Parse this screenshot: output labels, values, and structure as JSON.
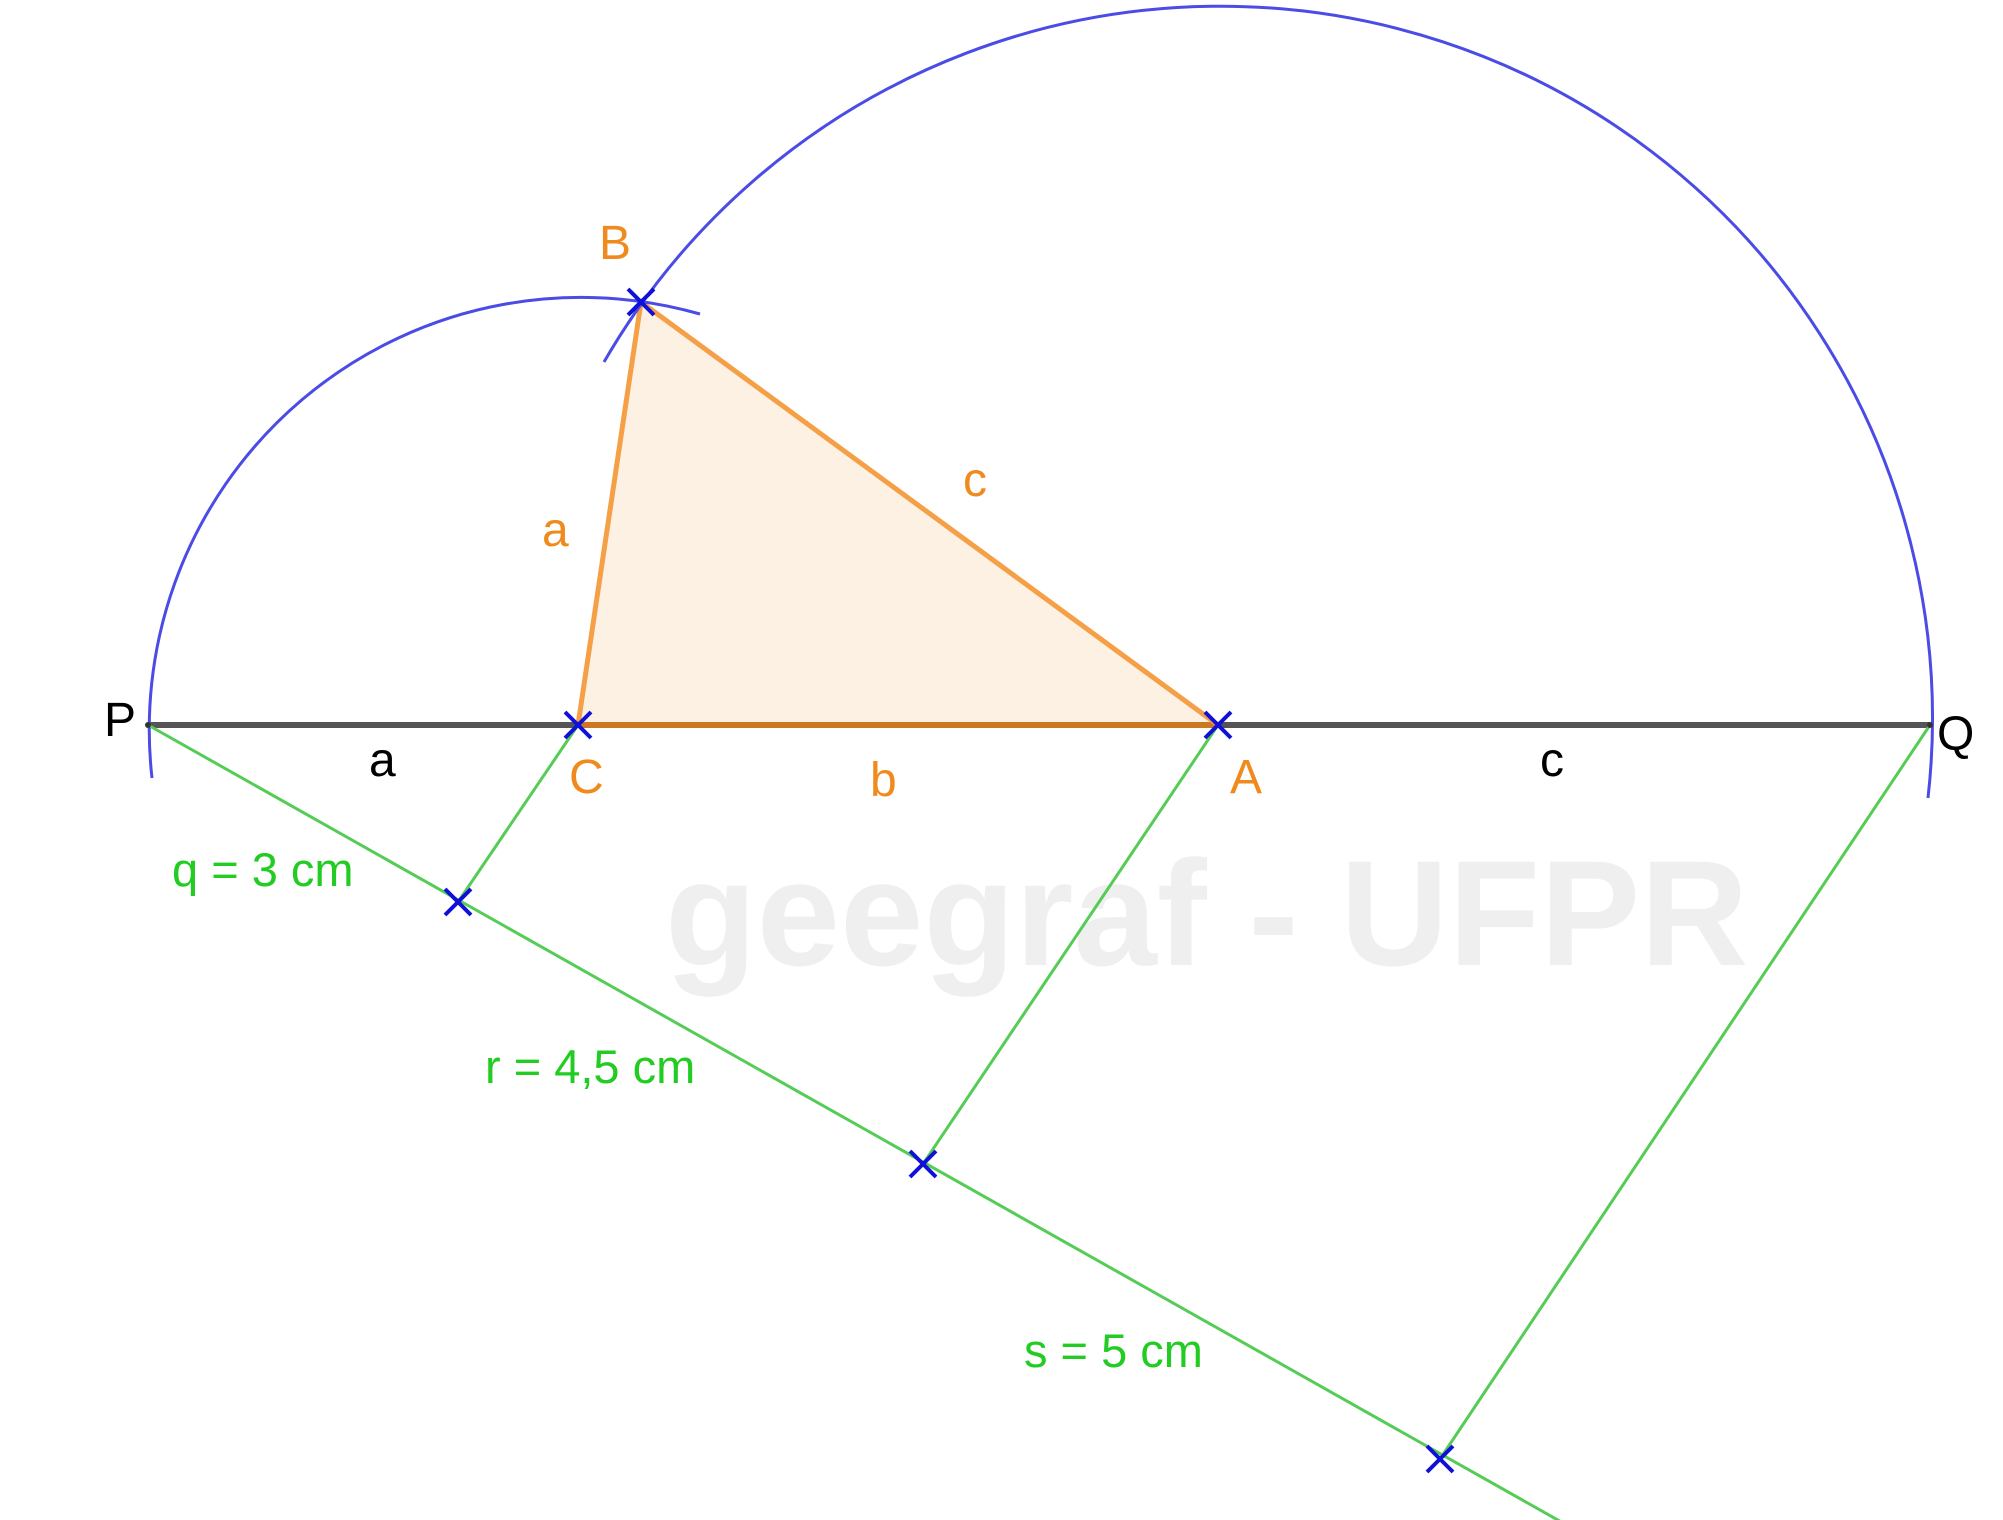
{
  "watermark": "geegraf - UFPR",
  "points": {
    "P": "P",
    "Q": "Q",
    "A": "A",
    "B": "B",
    "C": "C"
  },
  "segment_labels": {
    "a_baseline": "a",
    "c_baseline": "c",
    "a_triangle": "a",
    "b_triangle": "b",
    "c_triangle": "c"
  },
  "measurements": {
    "q": "q = 3 cm",
    "r": "r = 4,5 cm",
    "s": "s = 5 cm"
  },
  "colors": {
    "baseline": "#555555",
    "arc": "#4b4be6",
    "triangle_stroke": "#f5a047",
    "triangle_base": "#cc7722",
    "triangle_fill": "#fdf1e4",
    "construction": "#55cc55",
    "marker": "#1010d8",
    "label_orange": "#f08a1c",
    "label_green": "#22cc22"
  }
}
